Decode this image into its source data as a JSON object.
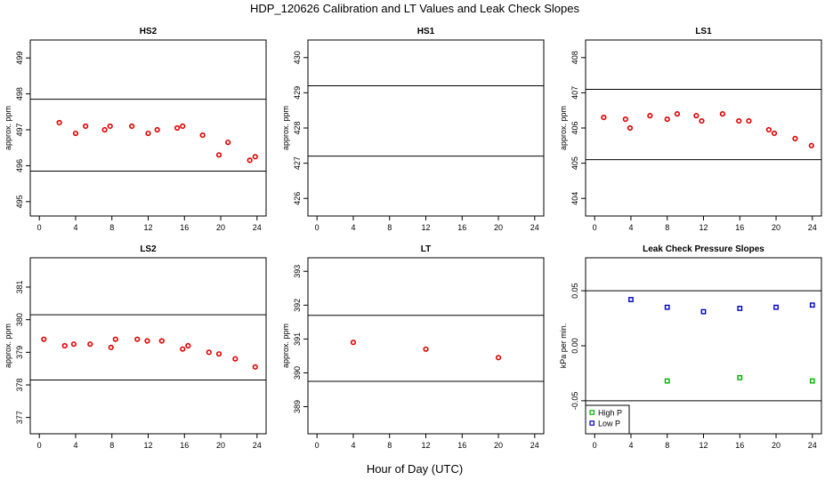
{
  "figure": {
    "title": "HDP_120626  Calibration and LT Values and Leak Check Slopes",
    "xlabel": "Hour of Day (UTC)"
  },
  "chart_data": [
    {
      "type": "scatter",
      "title": "HS2",
      "ylabel": "approx. ppm",
      "xlim": [
        -1,
        25
      ],
      "ylim": [
        494.6,
        499.5
      ],
      "xticks": [
        0,
        4,
        8,
        12,
        16,
        20,
        24
      ],
      "yticks": [
        495,
        496,
        497,
        498,
        499
      ],
      "hlines": [
        497.85,
        495.85
      ],
      "series": [
        {
          "marker": "circle",
          "color": "#e00000",
          "x": [
            2.2,
            4.0,
            5.1,
            7.2,
            7.8,
            10.2,
            12.0,
            13.0,
            15.2,
            15.8,
            18.0,
            19.8,
            20.8,
            23.2,
            23.8
          ],
          "y": [
            497.2,
            496.9,
            497.1,
            497.0,
            497.1,
            497.1,
            496.9,
            497.0,
            497.05,
            497.1,
            496.85,
            496.3,
            496.65,
            496.15,
            496.25
          ]
        }
      ]
    },
    {
      "type": "scatter",
      "title": "HS1",
      "ylabel": "approx. ppm",
      "xlim": [
        -1,
        25
      ],
      "ylim": [
        425.5,
        430.5
      ],
      "xticks": [
        0,
        4,
        8,
        12,
        16,
        20,
        24
      ],
      "yticks": [
        426,
        427,
        428,
        429,
        430
      ],
      "hlines": [
        429.2,
        427.2
      ],
      "series": []
    },
    {
      "type": "scatter",
      "title": "LS1",
      "ylabel": "approx. ppm",
      "xlim": [
        -1,
        25
      ],
      "ylim": [
        403.5,
        408.5
      ],
      "xticks": [
        0,
        4,
        8,
        12,
        16,
        20,
        24
      ],
      "yticks": [
        404,
        405,
        406,
        407,
        408
      ],
      "hlines": [
        407.1,
        405.1
      ],
      "series": [
        {
          "marker": "circle",
          "color": "#e00000",
          "x": [
            1.0,
            3.4,
            3.9,
            6.1,
            8.0,
            9.1,
            11.2,
            11.8,
            14.1,
            15.9,
            17.0,
            19.2,
            19.8,
            22.1,
            23.9
          ],
          "y": [
            406.3,
            406.25,
            406.0,
            406.35,
            406.25,
            406.4,
            406.35,
            406.2,
            406.4,
            406.2,
            406.2,
            405.95,
            405.85,
            405.7,
            405.5
          ]
        }
      ]
    },
    {
      "type": "scatter",
      "title": "LS2",
      "ylabel": "approx. ppm",
      "xlim": [
        -1,
        25
      ],
      "ylim": [
        376.5,
        381.9
      ],
      "xticks": [
        0,
        4,
        8,
        12,
        16,
        20,
        24
      ],
      "yticks": [
        377,
        378,
        379,
        380,
        381
      ],
      "hlines": [
        380.15,
        378.15
      ],
      "series": [
        {
          "marker": "circle",
          "color": "#e00000",
          "x": [
            0.5,
            2.8,
            3.8,
            5.6,
            7.9,
            8.4,
            10.8,
            11.9,
            13.5,
            15.8,
            16.4,
            18.7,
            19.8,
            21.6,
            23.8
          ],
          "y": [
            379.4,
            379.2,
            379.25,
            379.25,
            379.15,
            379.4,
            379.4,
            379.35,
            379.35,
            379.1,
            379.2,
            379.0,
            378.95,
            378.8,
            378.55
          ]
        }
      ]
    },
    {
      "type": "scatter",
      "title": "LT",
      "ylabel": "approx. ppm",
      "xlim": [
        -1,
        25
      ],
      "ylim": [
        388.2,
        393.4
      ],
      "xticks": [
        0,
        4,
        8,
        12,
        16,
        20,
        24
      ],
      "yticks": [
        389,
        390,
        391,
        392,
        393
      ],
      "hlines": [
        391.7,
        389.75
      ],
      "series": [
        {
          "marker": "circle",
          "color": "#e00000",
          "x": [
            4.0,
            12.0,
            20.0
          ],
          "y": [
            390.9,
            390.7,
            390.45
          ]
        }
      ]
    },
    {
      "type": "scatter",
      "title": "Leak Check Pressure Slopes",
      "ylabel": "kPa per min.",
      "xlim": [
        -1,
        25
      ],
      "ylim": [
        -0.08,
        0.08
      ],
      "xticks": [
        0,
        4,
        8,
        12,
        16,
        20,
        24
      ],
      "yticks": [
        -0.05,
        0.0,
        0.05
      ],
      "yticklabels": [
        "-0.05",
        "0.00",
        "0.05"
      ],
      "hlines": [
        0.05,
        -0.05
      ],
      "legend": {
        "position": "bottom-left"
      },
      "series": [
        {
          "name": "High P",
          "marker": "square",
          "color": "#00b000",
          "x": [
            8,
            16,
            24
          ],
          "y": [
            -0.032,
            -0.029,
            -0.032
          ]
        },
        {
          "name": "Low P",
          "marker": "square",
          "color": "#0000cc",
          "x": [
            4,
            8,
            12,
            16,
            20,
            24
          ],
          "y": [
            0.042,
            0.035,
            0.031,
            0.034,
            0.035,
            0.037
          ]
        }
      ]
    }
  ]
}
